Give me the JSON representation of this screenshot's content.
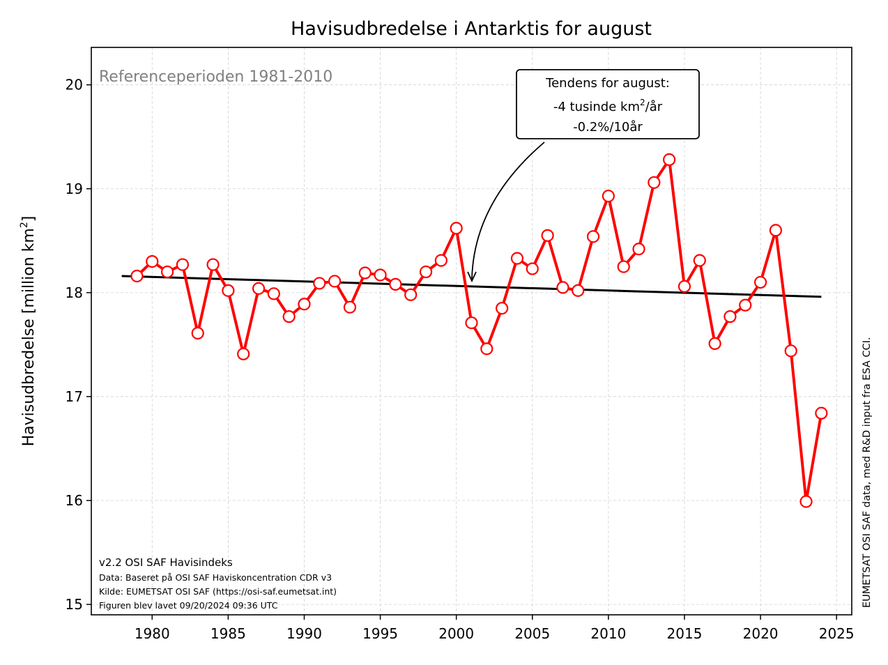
{
  "title": "Havisudbredelse i Antarktis for august",
  "ylabel": "Havisudbredelse [million km",
  "ylabel_sup": "2",
  "ylabel_end": "]",
  "reference_text": "Referenceperioden 1981-2010",
  "trend_box": {
    "line1": "Tendens for august:",
    "line2": "-4 tusinde km",
    "line2_sup": "2",
    "line2_end": "/år",
    "line3": "-0.2%/10år"
  },
  "footer": {
    "line1": "v2.2 OSI SAF Havisindeks",
    "line2": "Data: Baseret på OSI SAF Haviskoncentration CDR v3",
    "line3": "Kilde: EUMETSAT OSI SAF (https://osi-saf.eumetsat.int)",
    "line4": "Figuren blev lavet 09/20/2024 09:36 UTC"
  },
  "side_text": "EUMETSAT OSI SAF data, med R&D input fra ESA CCI.",
  "chart_data": {
    "type": "line",
    "title": "Havisudbredelse i Antarktis for august",
    "ylabel": "Havisudbredelse [million km²]",
    "xlim": [
      1976,
      2026
    ],
    "ylim": [
      14.9,
      20.36
    ],
    "xticks": [
      1980,
      1985,
      1990,
      1995,
      2000,
      2005,
      2010,
      2015,
      2020,
      2025
    ],
    "yticks": [
      15,
      16,
      17,
      18,
      19,
      20
    ],
    "grid": true,
    "colors": {
      "series": "#ff0000",
      "trend": "#000000",
      "marker_fill": "#ffffff"
    },
    "series": [
      {
        "x": [
          1979,
          1980,
          1981,
          1982,
          1983,
          1984,
          1985,
          1986,
          1987,
          1988,
          1989,
          1990,
          1991,
          1992,
          1993,
          1994,
          1995,
          1996,
          1997,
          1998,
          1999,
          2000,
          2001,
          2002,
          2003,
          2004,
          2005,
          2006,
          2007,
          2008,
          2009,
          2010,
          2011,
          2012,
          2013,
          2014,
          2015,
          2016,
          2017,
          2018,
          2019,
          2020,
          2021,
          2022,
          2023,
          2024
        ],
        "values": [
          18.16,
          18.3,
          18.2,
          18.27,
          17.61,
          18.27,
          18.02,
          17.41,
          18.04,
          17.99,
          17.77,
          17.89,
          18.09,
          18.11,
          17.86,
          18.19,
          18.17,
          18.08,
          17.98,
          18.2,
          18.31,
          18.62,
          17.71,
          17.46,
          17.85,
          18.33,
          18.23,
          18.55,
          18.05,
          18.02,
          18.54,
          18.93,
          18.25,
          18.42,
          19.06,
          19.28,
          18.06,
          18.31,
          17.51,
          17.77,
          17.88,
          18.1,
          18.6,
          17.44,
          15.99,
          16.84
        ]
      }
    ],
    "trend": {
      "x": [
        1978,
        2024
      ],
      "values": [
        18.16,
        17.96
      ]
    }
  }
}
